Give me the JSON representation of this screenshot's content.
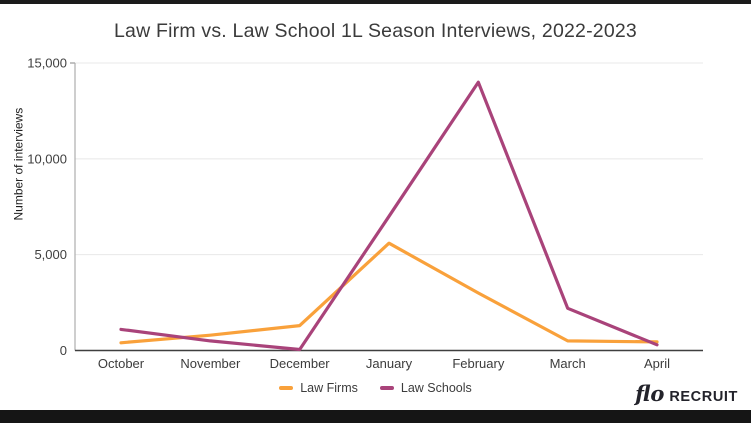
{
  "page": {
    "top_bar_color": "#1b1b1b",
    "bottom_bar_color": "#151515"
  },
  "logo": {
    "script_text": "flo",
    "wordmark_text": "RECRUIT",
    "color": "#23232b"
  },
  "chart_data": {
    "type": "line",
    "title": "Law Firm vs. Law School 1L Season Interviews, 2022-2023",
    "xlabel": "",
    "ylabel": "Number of interviews",
    "categories": [
      "October",
      "November",
      "December",
      "January",
      "February",
      "March",
      "April"
    ],
    "series": [
      {
        "name": "Law Firms",
        "color": "#F9A13B",
        "values": [
          400,
          800,
          1300,
          5600,
          3000,
          500,
          450
        ]
      },
      {
        "name": "Law Schools",
        "color": "#A9437A",
        "values": [
          1100,
          500,
          50,
          7000,
          14000,
          2200,
          300
        ]
      }
    ],
    "ylim": [
      0,
      15000
    ],
    "yticks": [
      0,
      5000,
      10000,
      15000
    ],
    "ytick_labels": [
      "0",
      "5,000",
      "10,000",
      "15,000"
    ],
    "grid": "horizontal",
    "legend_position": "bottom",
    "colors": {
      "gridline": "#E8E8E8",
      "y_axis_line": "#ADADAD",
      "x_axis_line": "#3F3F3F",
      "tick_label": "#3F3F3F",
      "title": "#3B3B3B"
    }
  }
}
